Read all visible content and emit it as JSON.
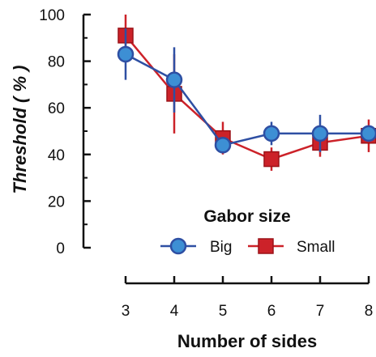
{
  "chart_data": {
    "type": "line",
    "xlabel": "Number of sides",
    "ylabel": "Threshold ( % )",
    "x": [
      3,
      4,
      5,
      6,
      7,
      8
    ],
    "xticklabels": [
      "3",
      "4",
      "5",
      "6",
      "7",
      "8"
    ],
    "ylim": [
      0,
      100
    ],
    "yticks": [
      0,
      20,
      40,
      60,
      80,
      100
    ],
    "yticklabels": [
      "0",
      "20",
      "40",
      "60",
      "80",
      "100"
    ],
    "legend": {
      "title": "Gabor size",
      "placement": "lower-right"
    },
    "grid": false,
    "series": [
      {
        "name": "Small",
        "color": "#cc2229",
        "marker": "square",
        "values": [
          91,
          66,
          47,
          38,
          45,
          48
        ],
        "error": [
          9,
          17,
          7,
          5,
          6,
          7
        ]
      },
      {
        "name": "Big",
        "color": "#2e4fa3",
        "fill": "#3d8fd4",
        "marker": "circle",
        "values": [
          83,
          72,
          44,
          49,
          49,
          49
        ],
        "error": [
          11,
          14,
          3,
          5,
          8,
          3
        ]
      }
    ]
  }
}
